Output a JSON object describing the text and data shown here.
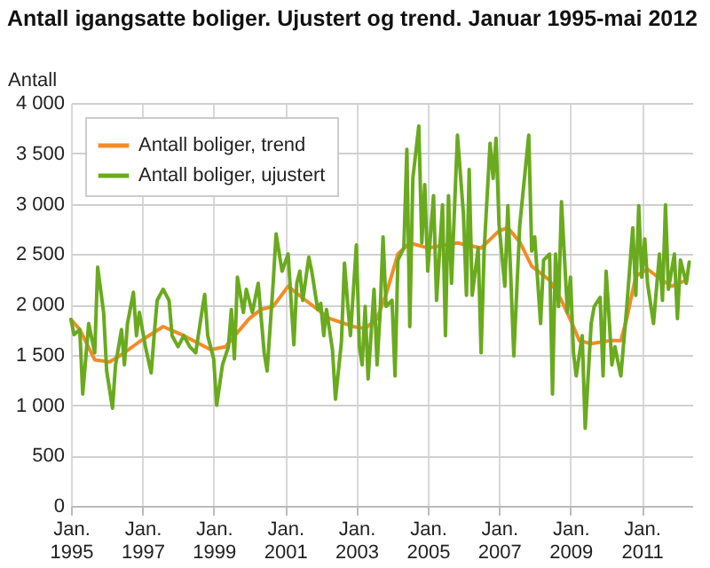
{
  "chart_data": {
    "type": "line",
    "title": "Antall igangsatte boliger. Ujustert og trend. Januar 1995-mai 2012",
    "ylabel": "Antall",
    "xlim": [
      "1995-01",
      "2012-06"
    ],
    "xticks": [
      {
        "value": "1995-01",
        "label": "Jan. 1995"
      },
      {
        "value": "1997-01",
        "label": "Jan. 1997"
      },
      {
        "value": "1999-01",
        "label": "Jan. 1999"
      },
      {
        "value": "2001-01",
        "label": "Jan. 2001"
      },
      {
        "value": "2003-01",
        "label": "Jan. 2003"
      },
      {
        "value": "2005-01",
        "label": "Jan. 2005"
      },
      {
        "value": "2007-01",
        "label": "Jan. 2007"
      },
      {
        "value": "2009-01",
        "label": "Jan. 2009"
      },
      {
        "value": "2011-01",
        "label": "Jan. 2011"
      }
    ],
    "ylim": [
      0,
      4000
    ],
    "yticks": [
      0,
      500,
      {
        "value": 1000,
        "label": "1 000"
      },
      {
        "value": 1500,
        "label": "1 500"
      },
      {
        "value": 2000,
        "label": "2 000"
      },
      {
        "value": 2500,
        "label": "2 500"
      },
      {
        "value": 3000,
        "label": "3 000"
      },
      {
        "value": 3500,
        "label": "3 500"
      },
      {
        "value": 4000,
        "label": "4 000"
      }
    ],
    "grid": true,
    "legend": "top left",
    "line_style": "solid",
    "marker": "none",
    "series": [
      {
        "name": "Antall boliger, trend",
        "color": "#f28c28",
        "x": [
          "1995-01",
          "1995-04",
          "1995-09",
          "1996-02",
          "1996-07",
          "1996-12",
          "1997-08",
          "1998-03",
          "1998-12",
          "1999-05",
          "2000-01",
          "2000-05",
          "2000-09",
          "2001-02",
          "2001-08",
          "2002-04",
          "2002-12",
          "2003-04",
          "2003-08",
          "2003-11",
          "2004-03",
          "2004-07",
          "2005-01",
          "2005-07",
          "2005-11",
          "2006-07",
          "2007-01",
          "2007-04",
          "2007-08",
          "2007-12",
          "2008-06",
          "2008-10",
          "2009-02",
          "2009-04",
          "2009-08",
          "2010-02",
          "2010-06",
          "2010-08",
          "2010-11",
          "2011-03",
          "2011-07",
          "2011-11",
          "2012-04"
        ],
        "values": [
          1850,
          1750,
          1450,
          1430,
          1520,
          1630,
          1780,
          1690,
          1550,
          1580,
          1860,
          1950,
          1980,
          2180,
          2040,
          1860,
          1780,
          1760,
          1860,
          2100,
          2500,
          2610,
          2560,
          2590,
          2610,
          2560,
          2730,
          2760,
          2620,
          2380,
          2240,
          2040,
          1780,
          1640,
          1610,
          1640,
          1640,
          1860,
          2280,
          2350,
          2260,
          2180,
          2240
        ]
      },
      {
        "name": "Antall boliger, ujustert",
        "color": "#6aaa1e",
        "x": [
          "1995-01",
          "1995-02",
          "1995-04",
          "1995-05",
          "1995-07",
          "1995-09",
          "1995-10",
          "1995-12",
          "1996-01",
          "1996-03",
          "1996-04",
          "1996-06",
          "1996-07",
          "1996-08",
          "1996-10",
          "1996-11",
          "1996-12",
          "1997-02",
          "1997-04",
          "1997-05",
          "1997-06",
          "1997-08",
          "1997-10",
          "1997-11",
          "1998-01",
          "1998-03",
          "1998-05",
          "1998-07",
          "1998-09",
          "1998-10",
          "1998-11",
          "1999-01",
          "1999-02",
          "1999-04",
          "1999-06",
          "1999-07",
          "1999-08",
          "1999-09",
          "1999-11",
          "1999-12",
          "2000-02",
          "2000-04",
          "2000-06",
          "2000-07",
          "2000-09",
          "2000-10",
          "2000-12",
          "2001-02",
          "2001-04",
          "2001-05",
          "2001-06",
          "2001-07",
          "2001-09",
          "2001-10",
          "2001-12",
          "2002-01",
          "2002-02",
          "2002-03",
          "2002-05",
          "2002-06",
          "2002-08",
          "2002-09",
          "2002-10",
          "2002-11",
          "2003-01",
          "2003-02",
          "2003-03",
          "2003-04",
          "2003-05",
          "2003-07",
          "2003-08",
          "2003-09",
          "2003-10",
          "2003-11",
          "2004-01",
          "2004-02",
          "2004-03",
          "2004-05",
          "2004-06",
          "2004-07",
          "2004-08",
          "2004-10",
          "2004-11",
          "2004-12",
          "2005-01",
          "2005-02",
          "2005-03",
          "2005-04",
          "2005-06",
          "2005-07",
          "2005-08",
          "2005-09",
          "2005-11",
          "2006-01",
          "2006-02",
          "2006-03",
          "2006-04",
          "2006-06",
          "2006-07",
          "2006-08",
          "2006-10",
          "2006-11",
          "2006-12",
          "2007-01",
          "2007-03",
          "2007-04",
          "2007-05",
          "2007-06",
          "2007-08",
          "2007-11",
          "2007-12",
          "2008-01",
          "2008-03",
          "2008-04",
          "2008-06",
          "2008-07",
          "2008-08",
          "2008-09",
          "2008-10",
          "2008-12",
          "2009-01",
          "2009-02",
          "2009-03",
          "2009-05",
          "2009-06",
          "2009-08",
          "2009-09",
          "2009-11",
          "2009-12",
          "2010-01",
          "2010-02",
          "2010-03",
          "2010-04",
          "2010-06",
          "2010-07",
          "2010-08",
          "2010-10",
          "2010-11",
          "2010-12",
          "2011-01",
          "2011-02",
          "2011-03",
          "2011-05",
          "2011-07",
          "2011-08",
          "2011-09",
          "2011-10",
          "2011-12",
          "2012-01",
          "2012-02",
          "2012-04",
          "2012-05"
        ],
        "values": [
          1850,
          1700,
          1750,
          1110,
          1810,
          1520,
          2370,
          1920,
          1340,
          970,
          1400,
          1750,
          1400,
          1810,
          2120,
          1690,
          1920,
          1580,
          1320,
          1690,
          2040,
          2150,
          2040,
          1690,
          1580,
          1690,
          1580,
          1520,
          1920,
          2100,
          1690,
          1460,
          1000,
          1400,
          1580,
          1950,
          1460,
          2270,
          1920,
          2150,
          1920,
          2210,
          1520,
          1340,
          2210,
          2700,
          2330,
          2500,
          1600,
          2210,
          2330,
          2040,
          2470,
          2330,
          1950,
          2010,
          1690,
          1950,
          1550,
          1060,
          1630,
          2410,
          2040,
          1690,
          2590,
          1580,
          1400,
          1980,
          1260,
          2150,
          1400,
          1920,
          2670,
          1980,
          2040,
          1290,
          2440,
          2560,
          3540,
          1780,
          3250,
          3770,
          2610,
          3190,
          2330,
          2730,
          3080,
          2040,
          2990,
          1690,
          3080,
          2210,
          3680,
          2900,
          2090,
          3340,
          2090,
          2560,
          1520,
          2530,
          3600,
          3250,
          3650,
          2790,
          2180,
          2980,
          2270,
          1490,
          2790,
          3680,
          2530,
          2670,
          1810,
          2440,
          2500,
          1110,
          2500,
          1980,
          3020,
          1920,
          2270,
          1520,
          1290,
          1690,
          770,
          1810,
          1980,
          2070,
          1290,
          2330,
          1860,
          1400,
          1580,
          1290,
          1630,
          1980,
          2760,
          2090,
          2980,
          2270,
          2650,
          2210,
          1810,
          2500,
          2040,
          2990,
          2150,
          2500,
          1860,
          2440,
          2210,
          2420
        ]
      }
    ]
  }
}
